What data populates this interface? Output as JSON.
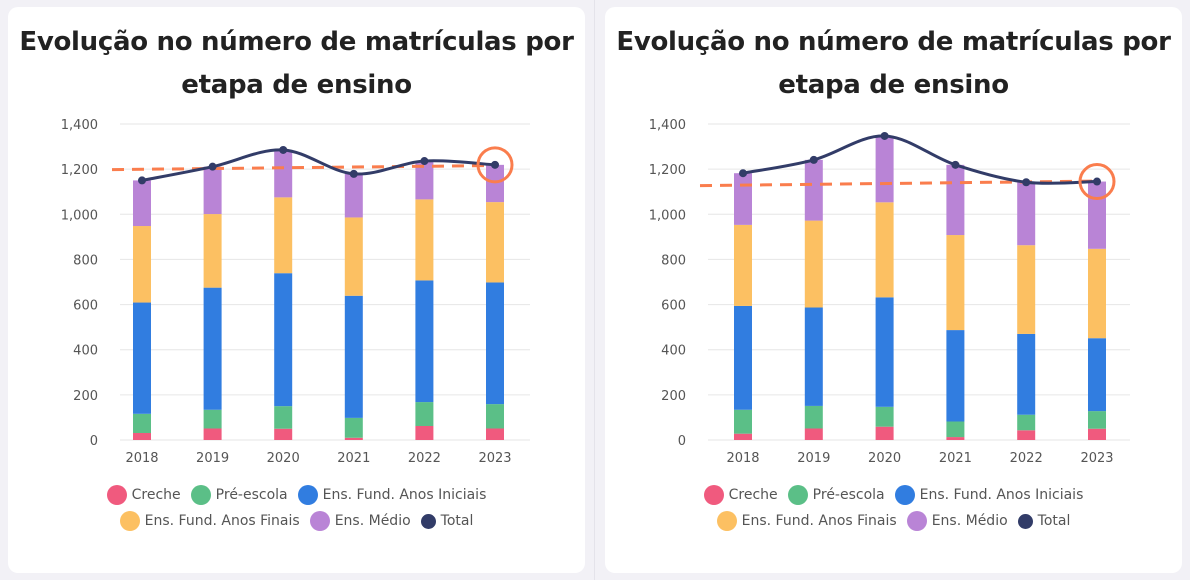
{
  "chart_data": [
    {
      "type": "bar",
      "title": "Evolução no número de matrículas por etapa de ensino",
      "categories": [
        "2018",
        "2019",
        "2020",
        "2021",
        "2022",
        "2023"
      ],
      "ylim": [
        0,
        1400
      ],
      "yticks": [
        "0",
        "200",
        "400",
        "600",
        "800",
        "1,000",
        "1,200",
        "1,400"
      ],
      "ytick_values": [
        0,
        200,
        400,
        600,
        800,
        1000,
        1200,
        1400
      ],
      "grid": true,
      "legend_position": "bottom",
      "series": [
        {
          "name": "Creche",
          "color": "#f05a7e",
          "values": [
            31,
            51,
            50,
            10,
            62,
            51
          ]
        },
        {
          "name": "Pré-escola",
          "color": "#5bbf87",
          "values": [
            85,
            83,
            100,
            88,
            106,
            108
          ]
        },
        {
          "name": "Ens. Fund. Anos Iniciais",
          "color": "#317de0",
          "values": [
            493,
            541,
            589,
            541,
            539,
            539
          ]
        },
        {
          "name": "Ens. Fund. Anos Finais",
          "color": "#fcc062",
          "values": [
            339,
            326,
            336,
            347,
            359,
            356
          ]
        },
        {
          "name": "Ens. Médio",
          "color": "#b984d6",
          "values": [
            202,
            210,
            210,
            193,
            170,
            165
          ]
        },
        {
          "name": "Total",
          "type": "line",
          "color": "#323c68",
          "values": [
            1150,
            1211,
            1285,
            1179,
            1236,
            1219
          ]
        }
      ],
      "trendline": {
        "color": "#fa7d4d",
        "style": "dashed",
        "start": 1198,
        "end": 1216
      },
      "highlight": {
        "category": "2023",
        "color": "#fa7d4d"
      }
    },
    {
      "type": "bar",
      "title": "Evolução no número de matrículas por etapa de ensino",
      "categories": [
        "2018",
        "2019",
        "2020",
        "2021",
        "2022",
        "2023"
      ],
      "ylim": [
        0,
        1400
      ],
      "yticks": [
        "0",
        "200",
        "400",
        "600",
        "800",
        "1,000",
        "1,200",
        "1,400"
      ],
      "ytick_values": [
        0,
        200,
        400,
        600,
        800,
        1000,
        1200,
        1400
      ],
      "grid": true,
      "legend_position": "bottom",
      "series": [
        {
          "name": "Creche",
          "color": "#f05a7e",
          "values": [
            28,
            51,
            59,
            13,
            43,
            50
          ]
        },
        {
          "name": "Pré-escola",
          "color": "#5bbf87",
          "values": [
            106,
            100,
            88,
            69,
            69,
            78
          ]
        },
        {
          "name": "Ens. Fund. Anos Iniciais",
          "color": "#317de0",
          "values": [
            460,
            436,
            485,
            405,
            358,
            323
          ]
        },
        {
          "name": "Ens. Fund. Anos Finais",
          "color": "#fcc062",
          "values": [
            359,
            385,
            421,
            421,
            393,
            396
          ]
        },
        {
          "name": "Ens. Médio",
          "color": "#b984d6",
          "values": [
            229,
            269,
            294,
            311,
            279,
            298
          ]
        },
        {
          "name": "Total",
          "type": "line",
          "color": "#323c68",
          "values": [
            1182,
            1241,
            1347,
            1219,
            1142,
            1145
          ]
        }
      ],
      "trendline": {
        "color": "#fa7d4d",
        "style": "dashed",
        "start": 1127,
        "end": 1147
      },
      "highlight": {
        "category": "2023",
        "color": "#fa7d4d"
      }
    }
  ]
}
